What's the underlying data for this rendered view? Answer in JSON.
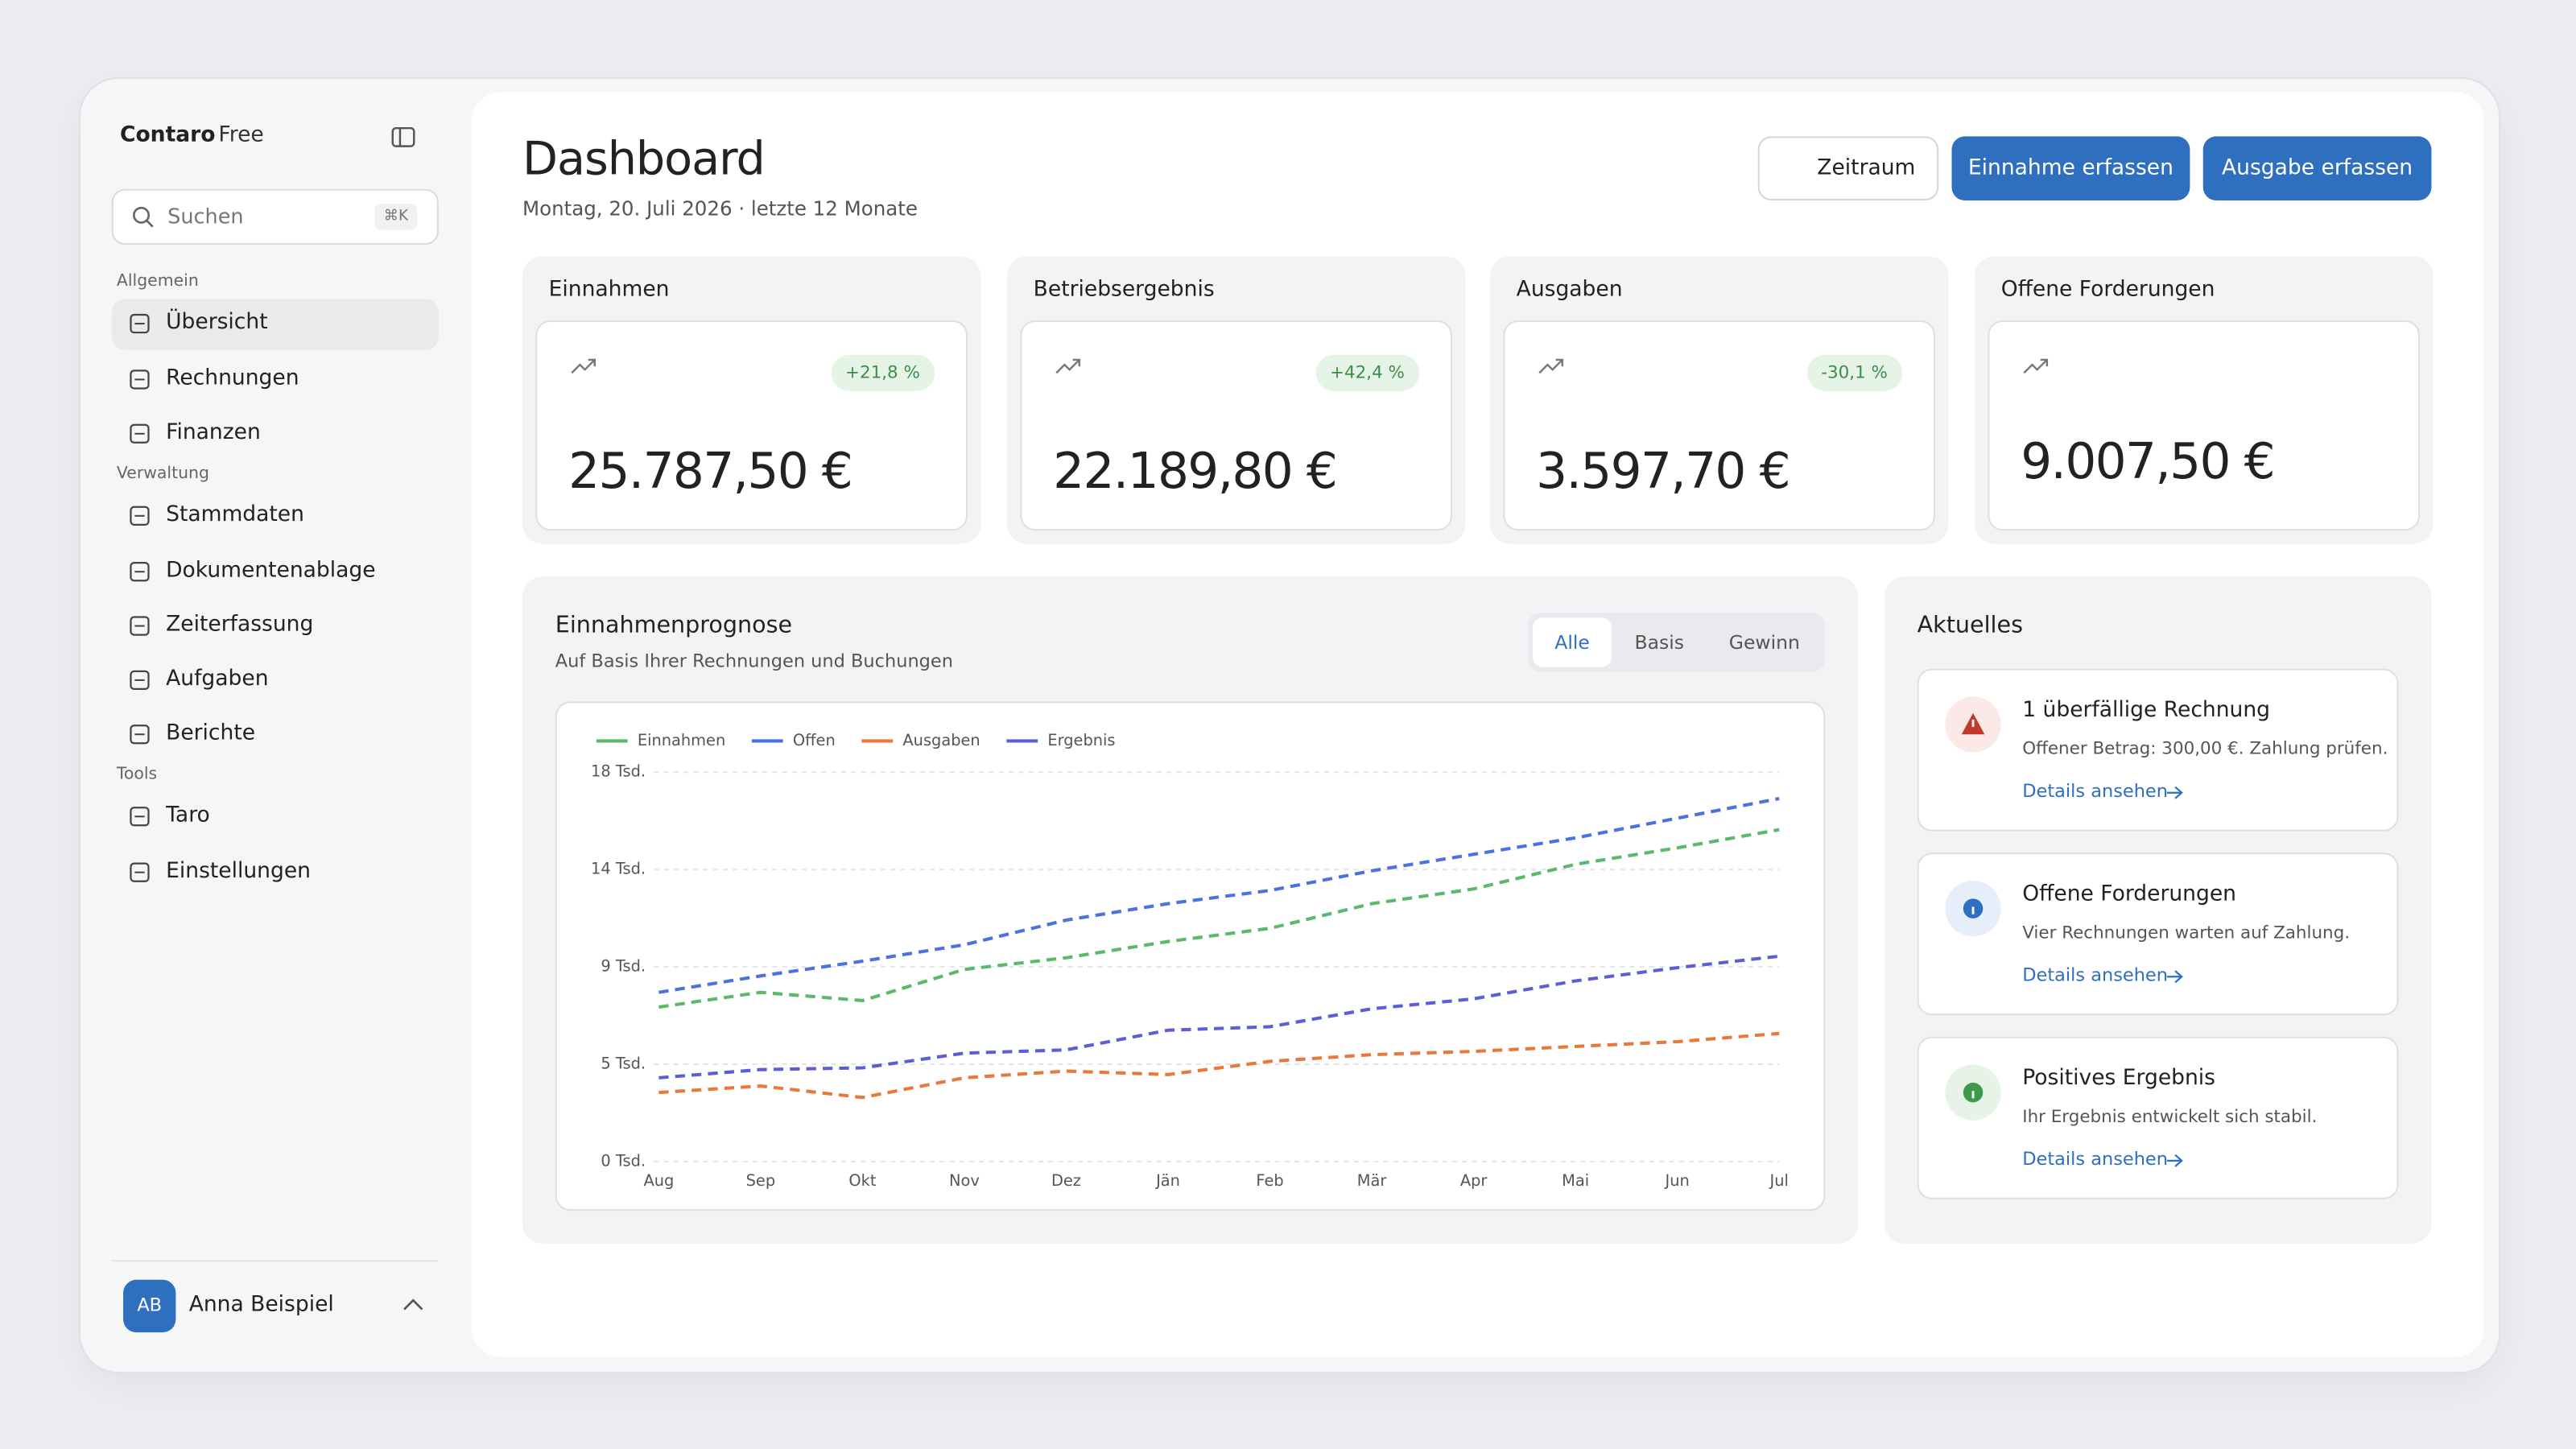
{
  "sidebar": {
    "brand": "Contaro",
    "plan": "Free",
    "search_placeholder": "Suchen",
    "search_shortcut": "⌘K",
    "sections": [
      {
        "label": "Allgemein",
        "items": [
          "Übersicht",
          "Rechnungen",
          "Finanzen"
        ]
      },
      {
        "label": "Verwaltung",
        "items": [
          "Stammdaten",
          "Dokumentenablage",
          "Zeiterfassung",
          "Aufgaben",
          "Berichte"
        ]
      },
      {
        "label": "Tools",
        "items": [
          "Taro",
          "Einstellungen"
        ]
      }
    ],
    "user": {
      "initials": "AB",
      "name": "Anna Beispiel"
    }
  },
  "header": {
    "title": "Dashboard",
    "subtitle": "Montag, 20. Juli 2026 · letzte 12 Monate",
    "buttons": [
      "Zeitraum",
      "Einnahme erfassen",
      "Ausgabe erfassen"
    ]
  },
  "kpis": [
    {
      "label": "Einnahmen",
      "value": "25.787,50 €",
      "change": "+21,8 %"
    },
    {
      "label": "Betriebsergebnis",
      "value": "22.189,80 €",
      "change": "+42,4 %"
    },
    {
      "label": "Ausgaben",
      "value": "3.597,70 €",
      "change": "-30,1 %"
    },
    {
      "label": "Offene Forderungen",
      "value": "9.007,50 €"
    }
  ],
  "forecast_tabs": [
    "Alle",
    "Basis",
    "Gewinn"
  ],
  "chart_data": {
    "type": "line",
    "title": "Einnahmenprognose",
    "subtitle": "Auf Basis Ihrer Rechnungen und Buchungen",
    "categories": [
      "Aug",
      "Sep",
      "Okt",
      "Nov",
      "Dez",
      "Jän",
      "Feb",
      "Mär",
      "Apr",
      "Mai",
      "Jun",
      "Jul"
    ],
    "series": [
      {
        "name": "Einnahmen",
        "color": "#5cb86a",
        "values": [
          7140,
          7820,
          7440,
          8880,
          9420,
          10170,
          10780,
          11920,
          12600,
          13740,
          14500,
          15340
        ]
      },
      {
        "name": "Offen",
        "color": "#4a72e0",
        "values": [
          7820,
          8580,
          9260,
          10020,
          11160,
          11920,
          12530,
          13440,
          14200,
          14960,
          15870,
          16780
        ]
      },
      {
        "name": "Ausgaben",
        "color": "#e8793a",
        "values": [
          3190,
          3490,
          2960,
          3870,
          4180,
          4020,
          4630,
          4940,
          5090,
          5320,
          5540,
          5920
        ]
      },
      {
        "name": "Ergebnis",
        "color": "#5a5fd6",
        "values": [
          3870,
          4250,
          4330,
          5010,
          5160,
          6070,
          6230,
          7060,
          7520,
          8350,
          8960,
          9490
        ]
      }
    ],
    "ylim": [
      0,
      18000
    ],
    "yticks": [
      {
        "value": 0,
        "label": "0 Tsd."
      },
      {
        "value": 4500,
        "label": "5 Tsd."
      },
      {
        "value": 9000,
        "label": "9 Tsd."
      },
      {
        "value": 13500,
        "label": "14 Tsd."
      },
      {
        "value": 18000,
        "label": "18 Tsd."
      }
    ],
    "grid": true
  },
  "news": {
    "title": "Aktuelles",
    "items": [
      {
        "title": "1 überfällige Rechnung",
        "text": "Offener Betrag: 300,00 €. Zahlung prüfen.",
        "link": "Details ansehen"
      },
      {
        "title": "Offene Forderungen",
        "text": "Vier Rechnungen warten auf Zahlung.",
        "link": "Details ansehen"
      },
      {
        "title": "Positives Ergebnis",
        "text": "Ihr Ergebnis entwickelt sich stabil.",
        "link": "Details ansehen"
      }
    ]
  }
}
